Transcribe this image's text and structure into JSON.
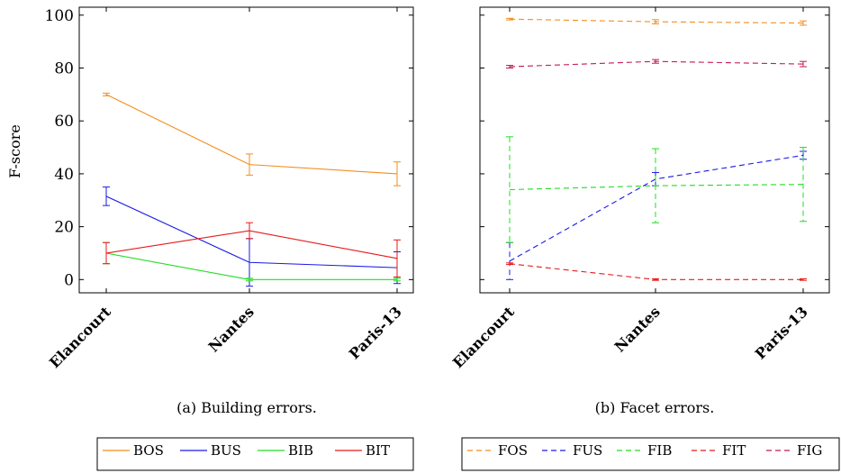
{
  "chart_data": [
    {
      "type": "line",
      "caption": "(a) Building errors.",
      "ylabel": "F-score",
      "categories": [
        "Elancourt",
        "Nantes",
        "Paris-13"
      ],
      "ylim": [
        -5,
        103
      ],
      "yticks": [
        0,
        20,
        40,
        60,
        80,
        100
      ],
      "legend_position": "bottom",
      "series": [
        {
          "name": "BOS",
          "color": "#f28e1e",
          "dashed": false,
          "values": [
            70,
            43.5,
            40
          ],
          "errors": [
            0.5,
            4,
            4.5
          ]
        },
        {
          "name": "BUS",
          "color": "#1a1ae6",
          "dashed": false,
          "values": [
            31.5,
            6.5,
            4.5
          ],
          "errors": [
            3.5,
            9,
            6
          ]
        },
        {
          "name": "BIB",
          "color": "#22dd22",
          "dashed": false,
          "values": [
            10,
            0,
            0
          ],
          "errors": [
            4,
            0.5,
            0.5
          ]
        },
        {
          "name": "BIT",
          "color": "#e61a1a",
          "dashed": false,
          "values": [
            10,
            18.5,
            8
          ],
          "errors": [
            4,
            3,
            7
          ]
        }
      ]
    },
    {
      "type": "line",
      "caption": "(b) Facet errors.",
      "categories": [
        "Elancourt",
        "Nantes",
        "Paris-13"
      ],
      "ylim": [
        -5,
        103
      ],
      "legend_position": "bottom",
      "series": [
        {
          "name": "FOS",
          "color": "#f28e1e",
          "dashed": true,
          "values": [
            98.5,
            97.5,
            97
          ],
          "errors": [
            0.3,
            0.8,
            0.8
          ]
        },
        {
          "name": "FUS",
          "color": "#1a1ae6",
          "dashed": true,
          "values": [
            7,
            38,
            47
          ],
          "errors": [
            7,
            2.5,
            1.5
          ]
        },
        {
          "name": "FIB",
          "color": "#22dd22",
          "dashed": true,
          "values": [
            34,
            35.5,
            36
          ],
          "errors": [
            20,
            14,
            14
          ]
        },
        {
          "name": "FIT",
          "color": "#e61a1a",
          "dashed": true,
          "values": [
            6,
            0,
            0
          ],
          "errors": [
            0.3,
            0.3,
            0.3
          ]
        },
        {
          "name": "FIG",
          "color": "#c2185b",
          "dashed": true,
          "values": [
            80.5,
            82.5,
            81.5
          ],
          "errors": [
            0.5,
            0.7,
            1
          ]
        }
      ]
    }
  ]
}
